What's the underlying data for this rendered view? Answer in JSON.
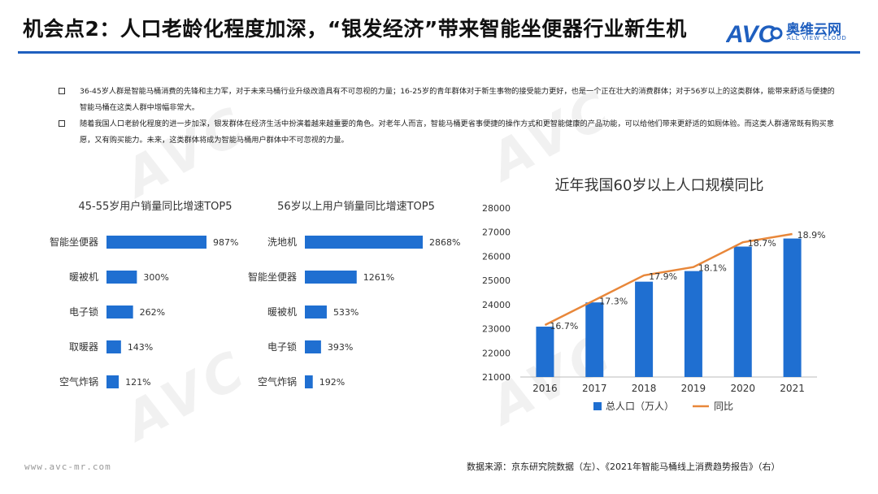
{
  "header": {
    "title": "机会点2：人口老龄化程度加深，“银发经济”带来智能坐便器行业新生机",
    "logo_text": "奥维云网",
    "logo_sub": "ALL VIEW CLOUD"
  },
  "bullets": [
    "36-45岁人群是智能马桶消费的先锋和主力军，对于未来马桶行业升级改造具有不可忽视的力量；16-25岁的青年群体对于新生事物的接受能力更好，也是一个正在壮大的消费群体；对于56岁以上的这类群体，能带来舒适与便捷的智能马桶在这类人群中增幅非常大。",
    "随着我国人口老龄化程度的进一步加深，银发群体在经济生活中扮演着越来越重要的角色。对老年人而言，智能马桶更省事便捷的操作方式和更智能健康的产品功能，可以给他们带来更舒适的如厕体验。而这类人群通常既有购买意愿，又有购买能力。未来，这类群体将成为智能马桶用户群体中不可忽视的力量。"
  ],
  "colors": {
    "bar": "#1f6fd1",
    "line": "#e8873a",
    "accent": "#1f5fbf"
  },
  "chart_data": [
    {
      "type": "bar",
      "orientation": "horizontal",
      "title": "45-55岁用户销量同比增速TOP5",
      "categories": [
        "智能坐便器",
        "暖被机",
        "电子锁",
        "取暖器",
        "空气炸锅"
      ],
      "values": [
        987,
        300,
        262,
        143,
        121
      ],
      "labels": [
        "987%",
        "300%",
        "262%",
        "143%",
        "121%"
      ]
    },
    {
      "type": "bar",
      "orientation": "horizontal",
      "title": "56岁以上用户销量同比增速TOP5",
      "categories": [
        "洗地机",
        "智能坐便器",
        "暖被机",
        "电子锁",
        "空气炸锅"
      ],
      "values": [
        2868,
        1261,
        533,
        393,
        192
      ],
      "labels": [
        "2868%",
        "1261%",
        "533%",
        "393%",
        "192%"
      ]
    },
    {
      "type": "bar",
      "title": "近年我国60岁以上人口规模同比",
      "categories": [
        "2016",
        "2017",
        "2018",
        "2019",
        "2020",
        "2021"
      ],
      "ylim": [
        21000,
        28000
      ],
      "yticks": [
        "21000",
        "22000",
        "23000",
        "24000",
        "25000",
        "26000",
        "27000",
        "28000"
      ],
      "series": [
        {
          "name": "总人口（万人）",
          "type": "bar",
          "values": [
            23086,
            24090,
            24949,
            25388,
            26402,
            26736
          ]
        },
        {
          "name": "同比",
          "type": "line",
          "values": [
            16.7,
            17.3,
            17.9,
            18.1,
            18.7,
            18.9
          ],
          "labels": [
            "16.7%",
            "17.3%",
            "17.9%",
            "18.1%",
            "18.7%",
            "18.9%"
          ]
        }
      ],
      "legend_position": "bottom"
    }
  ],
  "footer": {
    "website": "www.avc-mr.com",
    "source": "数据来源：京东研究院数据（左）、《2021年智能马桶线上消费趋势报告》（右）"
  }
}
